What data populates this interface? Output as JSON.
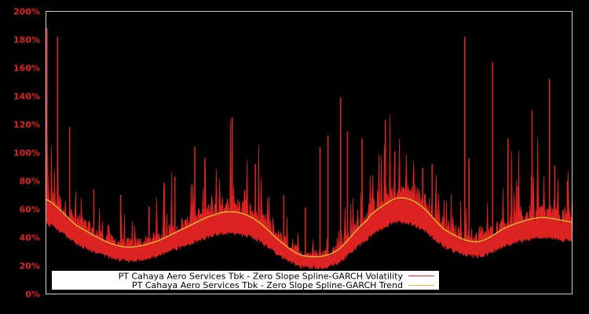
{
  "chart_data": {
    "type": "line",
    "title": "",
    "xlabel": "",
    "ylabel": "",
    "ylim": [
      0,
      200
    ],
    "y_ticks": [
      0,
      20,
      40,
      60,
      80,
      100,
      120,
      140,
      160,
      180,
      200
    ],
    "y_tick_labels": [
      "0%",
      "20%",
      "40%",
      "60%",
      "80%",
      "100%",
      "120%",
      "140%",
      "160%",
      "180%",
      "200%"
    ],
    "x_ticks": [],
    "grid": false,
    "legend_position": "lower center",
    "background": "#000000",
    "frame_color": "#cccccc",
    "series": [
      {
        "name": "PT Cahaya Aero Services Tbk - Zero Slope Spline-GARCH Volatility",
        "color": "#dd2222",
        "style": "spiky",
        "x": [
          0,
          0.2,
          2.2,
          4.5,
          9.1,
          14.2,
          19.6,
          24.5,
          28.3,
          30.2,
          35.4,
          37.8,
          39.8,
          45.2,
          49.3,
          52.1,
          53.6,
          56.0,
          57.3,
          60.1,
          64.5,
          66.3,
          69.9,
          71.6,
          73.4,
          79.6,
          80.4,
          84.9,
          87.8,
          89.7,
          92.4,
          95.7,
          96.7,
          99.1,
          100
        ],
        "values": [
          188,
          188,
          182,
          118,
          74,
          70,
          62,
          83,
          104,
          96,
          125,
          73,
          92,
          70,
          61,
          104,
          112,
          139,
          115,
          110,
          123,
          101,
          88,
          89,
          92,
          182,
          96,
          164,
          110,
          76,
          130,
          152,
          91,
          80,
          64
        ]
      },
      {
        "name": "PT Cahaya Aero Services Tbk - Zero Slope Spline-GARCH Trend",
        "color": "#ddbb33",
        "style": "smooth",
        "x": [
          0,
          6,
          14,
          20,
          26,
          32,
          36,
          40,
          45,
          49,
          55,
          61,
          63,
          67,
          71,
          76,
          82,
          88,
          94,
          100
        ],
        "values": [
          67,
          48,
          34,
          36,
          46,
          56,
          58,
          52,
          36,
          27,
          30,
          52,
          60,
          68,
          63,
          45,
          37,
          48,
          54,
          51
        ]
      }
    ]
  },
  "legend": {
    "items": [
      {
        "label": "PT Cahaya Aero Services Tbk - Zero Slope Spline-GARCH Volatility",
        "color": "#dd2222"
      },
      {
        "label": "PT Cahaya Aero Services Tbk - Zero Slope Spline-GARCH Trend",
        "color": "#ddbb33"
      }
    ]
  }
}
